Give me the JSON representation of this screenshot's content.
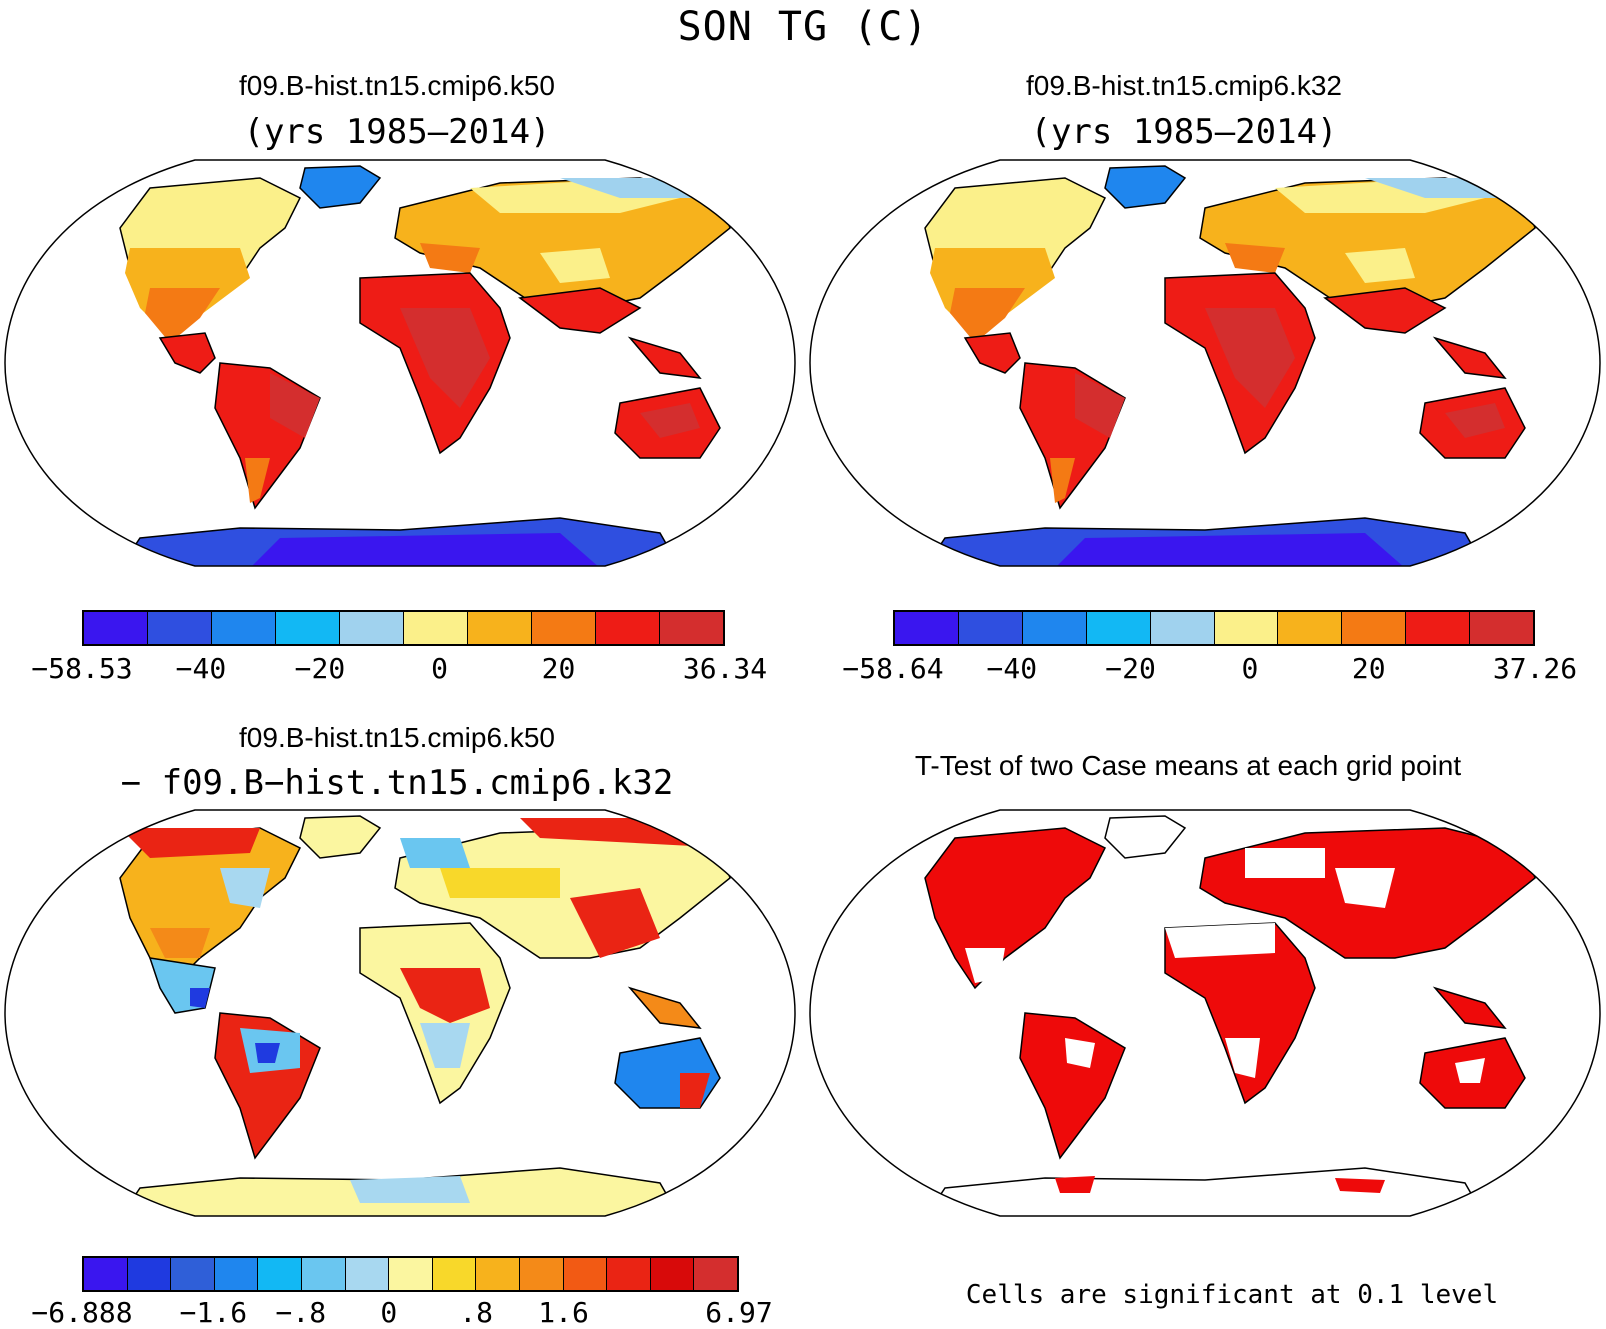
{
  "figure_title": "SON TG (C)",
  "panels": [
    {
      "title": "f09.B-hist.tn15.cmip6.k50",
      "subtitle": "(yrs 1985–2014)",
      "colorbar": {
        "colors": [
          "#3a16ef",
          "#2f4fe0",
          "#1f86ee",
          "#12b8f4",
          "#a0d2ee",
          "#fbf08a",
          "#f7b21c",
          "#f47a14",
          "#ee1c16",
          "#d42e2e"
        ],
        "labels": [
          "−58.53",
          "−40",
          "−20",
          "0",
          "20",
          "36.34"
        ]
      }
    },
    {
      "title": "f09.B-hist.tn15.cmip6.k32",
      "subtitle": "(yrs 1985–2014)",
      "colorbar": {
        "colors": [
          "#3a16ef",
          "#2f4fe0",
          "#1f86ee",
          "#12b8f4",
          "#a0d2ee",
          "#fbf08a",
          "#f7b21c",
          "#f47a14",
          "#ee1c16",
          "#d42e2e"
        ],
        "labels": [
          "−58.64",
          "−40",
          "−20",
          "0",
          "20",
          "37.26"
        ]
      }
    },
    {
      "title": "f09.B-hist.tn15.cmip6.k50",
      "subtitle": "− f09.B−hist.tn15.cmip6.k32",
      "colorbar": {
        "colors": [
          "#3a16ef",
          "#1f3ae0",
          "#2f5fd8",
          "#1f86ee",
          "#12b8f4",
          "#6ac6f0",
          "#a8d8f0",
          "#fbf6a0",
          "#f8d82a",
          "#f7b21c",
          "#f48a18",
          "#f25a14",
          "#ea2414",
          "#d80a0a",
          "#d42e2e"
        ],
        "labels": [
          "−6.888",
          "−1.6",
          "−.8",
          "0",
          ".8",
          "1.6",
          "6.97"
        ]
      }
    },
    {
      "title": "T-Test of two Case means at each grid point",
      "note": "Cells are significant at 0.1 level"
    }
  ]
}
